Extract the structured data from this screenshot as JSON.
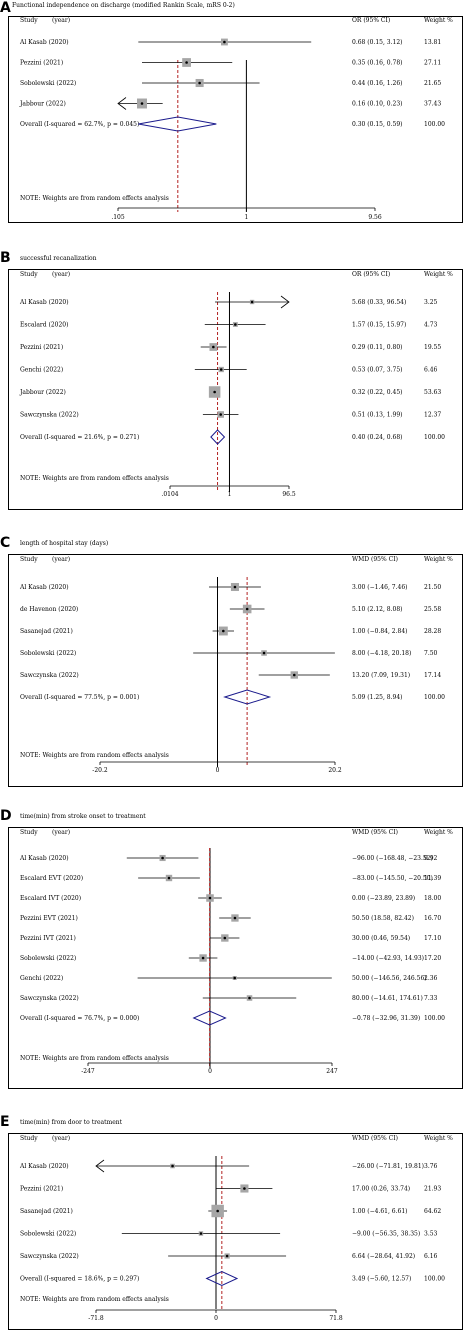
{
  "chart_data": [
    {
      "type": "forest",
      "letter": "A",
      "title": "Functional independence on discharge (modified Rankin Scale, mRS 0-2)",
      "col_study": "Study",
      "col_year": "(year)",
      "col_effect": "OR (95% CI)",
      "col_weight": "Weight %",
      "scale": "log",
      "null_value": 1,
      "xlim": [
        0.105,
        9.56
      ],
      "xticks": [
        ".105",
        "1",
        "9.56"
      ],
      "studies": [
        {
          "label": "Al Kasab (2020)",
          "est": 0.68,
          "lo": 0.15,
          "hi": 3.12,
          "ci": "0.68 (0.15, 3.12)",
          "weight": "13.81",
          "w": 13.81
        },
        {
          "label": "Pezzini (2021)",
          "est": 0.35,
          "lo": 0.16,
          "hi": 0.78,
          "ci": "0.35 (0.16, 0.78)",
          "weight": "27.11",
          "w": 27.11
        },
        {
          "label": "Sobolewski (2022)",
          "est": 0.44,
          "lo": 0.16,
          "hi": 1.26,
          "ci": "0.44 (0.16, 1.26)",
          "weight": "21.65",
          "w": 21.65
        },
        {
          "label": "Jabbour (2022)",
          "est": 0.16,
          "lo": 0.1,
          "hi": 0.23,
          "ci": "0.16 (0.10, 0.23)",
          "weight": "37.43",
          "w": 37.43
        }
      ],
      "overall": {
        "label": "Overall  (I-squared = 62.7%, p = 0.045)",
        "est": 0.3,
        "lo": 0.15,
        "hi": 0.59,
        "ci": "0.30 (0.15, 0.59)",
        "weight": "100.00"
      },
      "note": "NOTE: Weights are from random effects analysis"
    },
    {
      "type": "forest",
      "letter": "B",
      "title": "successful recanalization",
      "col_study": "Study",
      "col_year": "(year)",
      "col_effect": "OR (95% CI)",
      "col_weight": "Weight %",
      "scale": "log",
      "null_value": 1,
      "xlim": [
        0.0104,
        96.5
      ],
      "xticks": [
        ".0104",
        "1",
        "96.5"
      ],
      "studies": [
        {
          "label": "Al Kasab (2020)",
          "est": 5.68,
          "lo": 0.33,
          "hi": 96.54,
          "ci": "5.68 (0.33, 96.54)",
          "weight": "3.25",
          "w": 3.25
        },
        {
          "label": "Escalard (2020)",
          "est": 1.57,
          "lo": 0.15,
          "hi": 15.97,
          "ci": "1.57 (0.15, 15.97)",
          "weight": "4.73",
          "w": 4.73
        },
        {
          "label": "Pezzini (2021)",
          "est": 0.29,
          "lo": 0.11,
          "hi": 0.8,
          "ci": "0.29 (0.11, 0.80)",
          "weight": "19.55",
          "w": 19.55
        },
        {
          "label": "Genchi (2022)",
          "est": 0.53,
          "lo": 0.07,
          "hi": 3.75,
          "ci": "0.53 (0.07, 3.75)",
          "weight": "6.46",
          "w": 6.46
        },
        {
          "label": "Jabbour (2022)",
          "est": 0.32,
          "lo": 0.22,
          "hi": 0.45,
          "ci": "0.32 (0.22, 0.45)",
          "weight": "53.63",
          "w": 53.63
        },
        {
          "label": "Sawczynska (2022)",
          "est": 0.51,
          "lo": 0.13,
          "hi": 1.99,
          "ci": "0.51 (0.13, 1.99)",
          "weight": "12.37",
          "w": 12.37
        }
      ],
      "overall": {
        "label": "Overall  (I-squared = 21.6%, p = 0.271)",
        "est": 0.4,
        "lo": 0.24,
        "hi": 0.68,
        "ci": "0.40 (0.24, 0.68)",
        "weight": "100.00"
      },
      "note": "NOTE: Weights are from random effects analysis"
    },
    {
      "type": "forest",
      "letter": "C",
      "title": "length of hospital stay (days)",
      "col_study": "Study",
      "col_year": "(year)",
      "col_effect": "WMD (95% CI)",
      "col_weight": "Weight %",
      "scale": "linear",
      "null_value": 0,
      "xlim": [
        -20.2,
        20.2
      ],
      "xticks": [
        "-20.2",
        "0",
        "20.2"
      ],
      "studies": [
        {
          "label": "Al Kasab (2020)",
          "est": 3.0,
          "lo": -1.46,
          "hi": 7.46,
          "ci": "3.00 (−1.46, 7.46)",
          "weight": "21.50",
          "w": 21.5
        },
        {
          "label": "de Havenon (2020)",
          "est": 5.1,
          "lo": 2.12,
          "hi": 8.08,
          "ci": "5.10 (2.12, 8.08)",
          "weight": "25.58",
          "w": 25.58
        },
        {
          "label": "Sasanejad (2021)",
          "est": 1.0,
          "lo": -0.84,
          "hi": 2.84,
          "ci": "1.00 (−0.84, 2.84)",
          "weight": "28.28",
          "w": 28.28
        },
        {
          "label": "Sobolewski (2022)",
          "est": 8.0,
          "lo": -4.18,
          "hi": 20.18,
          "ci": "8.00 (−4.18, 20.18)",
          "weight": "7.50",
          "w": 7.5
        },
        {
          "label": "Sawczynska (2022)",
          "est": 13.2,
          "lo": 7.09,
          "hi": 19.31,
          "ci": "13.20 (7.09, 19.31)",
          "weight": "17.14",
          "w": 17.14
        }
      ],
      "overall": {
        "label": "Overall  (I-squared = 77.5%, p = 0.001)",
        "est": 5.09,
        "lo": 1.25,
        "hi": 8.94,
        "ci": "5.09 (1.25, 8.94)",
        "weight": "100.00"
      },
      "note": "NOTE: Weights are from random effects analysis"
    },
    {
      "type": "forest",
      "letter": "D",
      "title": "time(min) from stroke onset to treatment",
      "col_study": "Study",
      "col_year": "(year)",
      "col_effect": "WMD (95% CI)",
      "col_weight": "Weight %",
      "scale": "linear",
      "null_value": 0,
      "xlim": [
        -247,
        247
      ],
      "xticks": [
        "-247",
        "0",
        "247"
      ],
      "studies": [
        {
          "label": "Al Kasab (2020)",
          "est": -96.0,
          "lo": -168.48,
          "hi": -23.52,
          "ci": "−96.00 (−168.48, −23.52)",
          "weight": "9.92",
          "w": 9.92
        },
        {
          "label": "Escalard EVT (2020)",
          "est": -83.0,
          "lo": -145.5,
          "hi": -20.5,
          "ci": "−83.00 (−145.50, −20.50)",
          "weight": "11.39",
          "w": 11.39
        },
        {
          "label": "Escalard IVT (2020)",
          "est": 0.0,
          "lo": -23.89,
          "hi": 23.89,
          "ci": "0.00 (−23.89, 23.89)",
          "weight": "18.00",
          "w": 18.0
        },
        {
          "label": "Pezzini EVT (2021)",
          "est": 50.5,
          "lo": 18.58,
          "hi": 82.42,
          "ci": "50.50 (18.58, 82.42)",
          "weight": "16.70",
          "w": 16.7
        },
        {
          "label": "Pezzini IVT (2021)",
          "est": 30.0,
          "lo": 0.46,
          "hi": 59.54,
          "ci": "30.00 (0.46, 59.54)",
          "weight": "17.10",
          "w": 17.1
        },
        {
          "label": "Sobolewski (2022)",
          "est": -14.0,
          "lo": -42.93,
          "hi": 14.93,
          "ci": "−14.00 (−42.93, 14.93)",
          "weight": "17.20",
          "w": 17.2
        },
        {
          "label": "Genchi (2022)",
          "est": 50.0,
          "lo": -146.56,
          "hi": 246.56,
          "ci": "50.00 (−146.56, 246.56)",
          "weight": "2.36",
          "w": 2.36
        },
        {
          "label": "Sawczynska (2022)",
          "est": 80.0,
          "lo": -14.61,
          "hi": 174.61,
          "ci": "80.00 (−14.61, 174.61)",
          "weight": "7.33",
          "w": 7.33
        }
      ],
      "overall": {
        "label": "Overall  (I-squared = 76.7%, p = 0.000)",
        "est": -0.78,
        "lo": -32.96,
        "hi": 31.39,
        "ci": "−0.78 (−32.96, 31.39)",
        "weight": "100.00"
      },
      "note": "NOTE: Weights are from random effects analysis"
    },
    {
      "type": "forest",
      "letter": "E",
      "title": "time(min) from door to treatment",
      "col_study": "Study",
      "col_year": "(year)",
      "col_effect": "WMD (95% CI)",
      "col_weight": "Weight %",
      "scale": "linear",
      "null_value": 0,
      "xlim": [
        -71.8,
        71.8
      ],
      "xticks": [
        "-71.8",
        "0",
        "71.8"
      ],
      "studies": [
        {
          "label": "Al Kasab (2020)",
          "est": -26.0,
          "lo": -71.81,
          "hi": 19.81,
          "ci": "−26.00 (−71.81, 19.81)",
          "weight": "3.76",
          "w": 3.76
        },
        {
          "label": "Pezzini (2021)",
          "est": 17.0,
          "lo": 0.26,
          "hi": 33.74,
          "ci": "17.00 (0.26, 33.74)",
          "weight": "21.93",
          "w": 21.93
        },
        {
          "label": "Sasanejad (2021)",
          "est": 1.0,
          "lo": -4.61,
          "hi": 6.61,
          "ci": "1.00 (−4.61, 6.61)",
          "weight": "64.62",
          "w": 64.62
        },
        {
          "label": "Sobolewski (2022)",
          "est": -9.0,
          "lo": -56.35,
          "hi": 38.35,
          "ci": "−9.00 (−56.35, 38.35)",
          "weight": "3.53",
          "w": 3.53
        },
        {
          "label": "Sawczynska (2022)",
          "est": 6.64,
          "lo": -28.64,
          "hi": 41.92,
          "ci": "6.64 (−28.64, 41.92)",
          "weight": "6.16",
          "w": 6.16
        }
      ],
      "overall": {
        "label": "Overall  (I-squared = 18.6%, p = 0.297)",
        "est": 3.49,
        "lo": -5.6,
        "hi": 12.57,
        "ci": "3.49 (−5.60, 12.57)",
        "weight": "100.00"
      },
      "note": "NOTE: Weights are from random effects analysis"
    }
  ],
  "colors": {
    "line": "#000000",
    "diamond": "#1a1a8c",
    "dashed": "#b22222",
    "box": "#a6a6a6"
  }
}
